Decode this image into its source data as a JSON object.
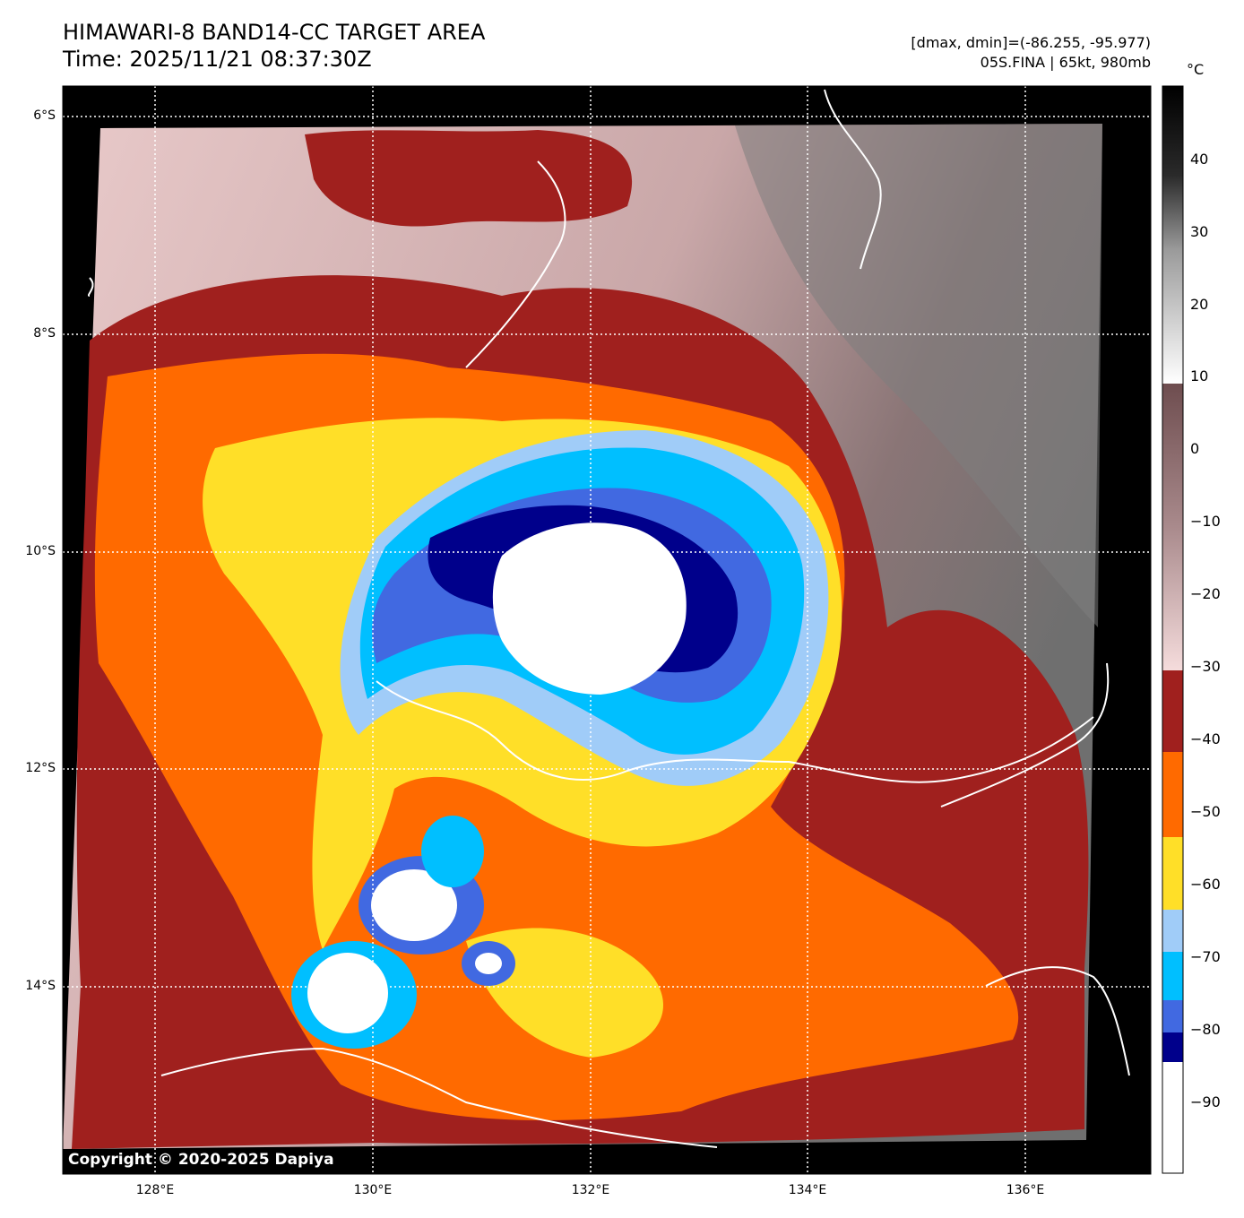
{
  "header": {
    "title": "HIMAWARI-8 BAND14-CC TARGET AREA",
    "time": "Time: 2025/11/21 08:37:30Z",
    "range": "[dmax, dmin]=(-86.255, -95.977)",
    "storm": "05S.FINA | 65kt, 980mb"
  },
  "map": {
    "lon_range": [
      127.2,
      137.2
    ],
    "lat_range": [
      -15.7,
      -5.7
    ],
    "lat_ticks": [
      "6°S",
      "8°S",
      "10°S",
      "12°S",
      "14°S"
    ],
    "lon_ticks": [
      "128°E",
      "130°E",
      "132°E",
      "134°E",
      "136°E"
    ],
    "gridlines": true,
    "copyright": "Copyright © 2020-2025 Dapiya"
  },
  "colorbar": {
    "unit": "°C",
    "ticks": [
      "40",
      "30",
      "20",
      "10",
      "0",
      "−10",
      "−20",
      "−30",
      "−40",
      "−50",
      "−60",
      "−70",
      "−80",
      "−90"
    ],
    "colors": {
      "white_core": "#ffffff",
      "navy": "#00008b",
      "royal_blue": "#4169e1",
      "deep_sky_blue": "#00bfff",
      "light_sky_blue": "#a0ccf8",
      "gold": "#ffdf28",
      "dark_orange": "#ff6a00",
      "brown": "#a0201e",
      "pink": "#f0d8d8",
      "black": "#000000"
    }
  }
}
